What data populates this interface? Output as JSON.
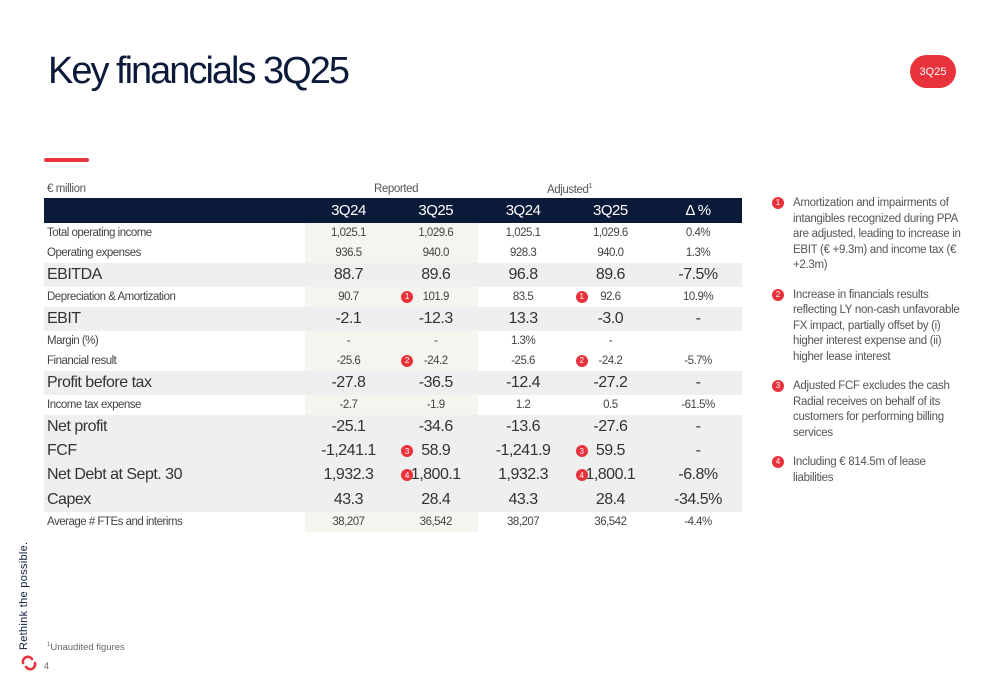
{
  "title": "Key financials 3Q25",
  "period_badge": "3Q25",
  "unit_label": "€ million",
  "group_reported": "Reported",
  "group_adjusted": "Adjusted",
  "group_adjusted_sup": "1",
  "columns": [
    "3Q24",
    "3Q25",
    "3Q24",
    "3Q25",
    "Δ %"
  ],
  "rows": [
    {
      "label": "Total operating income",
      "size": "small",
      "values": [
        "1,025.1",
        "1,029.6",
        "1,025.1",
        "1,029.6",
        "0.4%"
      ]
    },
    {
      "label": "Operating expenses",
      "size": "small",
      "values": [
        "936.5",
        "940.0",
        "928.3",
        "940.0",
        "1.3%"
      ]
    },
    {
      "label": "EBITDA",
      "size": "big",
      "values": [
        "88.7",
        "89.6",
        "96.8",
        "89.6",
        "-7.5%"
      ]
    },
    {
      "label": "Depreciation & Amortization",
      "size": "small",
      "badge": "1",
      "values": [
        "90.7",
        "101.9",
        "83.5",
        "92.6",
        "10.9%"
      ]
    },
    {
      "label": "EBIT",
      "size": "big",
      "values": [
        "-2.1",
        "-12.3",
        "13.3",
        "-3.0",
        "-"
      ]
    },
    {
      "label": "Margin (%)",
      "size": "small",
      "values": [
        "-",
        "-",
        "1.3%",
        "-",
        ""
      ]
    },
    {
      "label": "Financial result",
      "size": "small",
      "badge": "2",
      "values": [
        "-25.6",
        "-24.2",
        "-25.6",
        "-24.2",
        "-5.7%"
      ]
    },
    {
      "label": "Profit before tax",
      "size": "big",
      "values": [
        "-27.8",
        "-36.5",
        "-12.4",
        "-27.2",
        "-"
      ]
    },
    {
      "label": "Income tax expense",
      "size": "small",
      "values": [
        "-2.7",
        "-1.9",
        "1.2",
        "0.5",
        "-61.5%"
      ]
    },
    {
      "label": "Net profit",
      "size": "big",
      "values": [
        "-25.1",
        "-34.6",
        "-13.6",
        "-27.6",
        "-"
      ]
    },
    {
      "label": "FCF",
      "size": "big",
      "badge": "3",
      "values": [
        "-1,241.1",
        "58.9",
        "-1,241.9",
        "59.5",
        "-"
      ]
    },
    {
      "label": "Net Debt at Sept. 30",
      "size": "big",
      "badge": "4",
      "values": [
        "1,932.3",
        "1,800.1",
        "1,932.3",
        "1,800.1",
        "-6.8%"
      ]
    },
    {
      "label": "Capex",
      "size": "big",
      "values": [
        "43.3",
        "28.4",
        "43.3",
        "28.4",
        "-34.5%"
      ]
    },
    {
      "label": "Average # FTEs and interims",
      "size": "small",
      "values": [
        "38,207",
        "36,542",
        "38,207",
        "36,542",
        "-4.4%"
      ]
    }
  ],
  "notes": [
    {
      "num": "1",
      "text": "Amortization and impairments of intangibles recognized during PPA are adjusted, leading to increase in EBIT (€ +9.3m) and income tax (€ +2.3m)"
    },
    {
      "num": "2",
      "text": "Increase in financials results reflecting LY non-cash unfavorable FX impact, partially offset by (i) higher interest expense and (ii) higher lease interest"
    },
    {
      "num": "3",
      "text": "Adjusted FCF excludes the cash Radial receives on behalf of its customers for performing billing services"
    },
    {
      "num": "4",
      "text": "Including € 814.5m of lease liabilities"
    }
  ],
  "tagline": "Rethink the possible.",
  "footnote_sup": "1",
  "footnote": "Unaudited figures",
  "page_number": "4",
  "colors": {
    "accent": "#e8323c",
    "navy": "#0c1a3a"
  }
}
